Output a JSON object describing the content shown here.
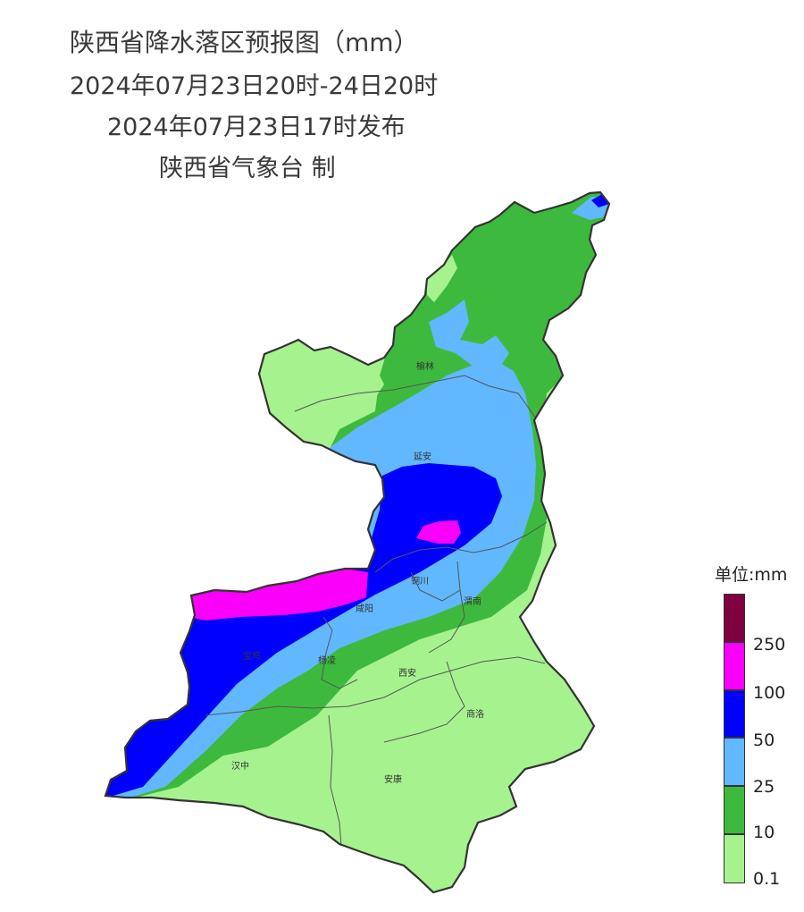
{
  "title": {
    "line1": "陕西省降水落区预报图（mm）",
    "line2": "2024年07月23日20时-24日20时",
    "line3": "2024年07月23日17时发布",
    "line4": "陕西省气象台 制"
  },
  "cities": {
    "yulin": "榆林",
    "yanan": "延安",
    "tongchuan": "铜川",
    "weinan": "渭南",
    "xianyang": "咸阳",
    "baoji": "宝鸡",
    "yangling": "杨凌",
    "xian": "西安",
    "shangluo": "商洛",
    "hanzhong": "汉中",
    "ankang": "安康"
  },
  "legend": {
    "title": "单位:mm",
    "classes": [
      {
        "label": "0.1",
        "color": "#a6f28f"
      },
      {
        "label": "10",
        "color": "#3dba3d"
      },
      {
        "label": "25",
        "color": "#61b8ff"
      },
      {
        "label": "50",
        "color": "#0000ff"
      },
      {
        "label": "100",
        "color": "#fa00fa"
      },
      {
        "label": "250",
        "color": "#800040"
      }
    ]
  }
}
